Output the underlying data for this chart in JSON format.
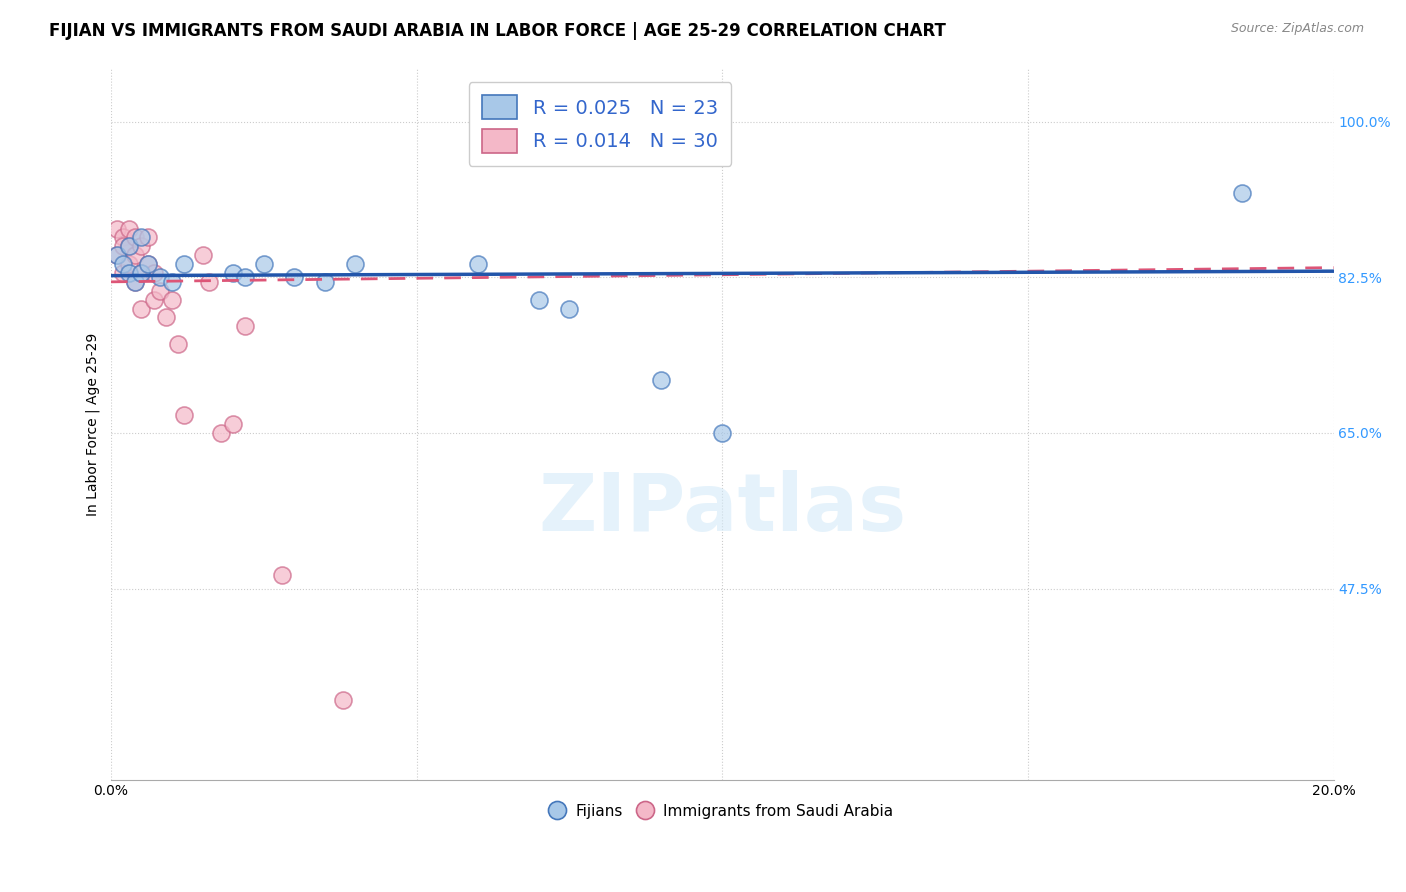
{
  "title": "FIJIAN VS IMMIGRANTS FROM SAUDI ARABIA IN LABOR FORCE | AGE 25-29 CORRELATION CHART",
  "source": "Source: ZipAtlas.com",
  "ylabel": "In Labor Force | Age 25-29",
  "xlim": [
    0.0,
    0.2
  ],
  "ylim": [
    0.26,
    1.06
  ],
  "yticks": [
    0.475,
    0.65,
    0.825,
    1.0
  ],
  "ytick_labels": [
    "47.5%",
    "65.0%",
    "82.5%",
    "100.0%"
  ],
  "xticks": [
    0.0,
    0.05,
    0.1,
    0.15,
    0.2
  ],
  "xtick_labels": [
    "0.0%",
    "",
    "",
    "",
    "20.0%"
  ],
  "legend_label1": "Fijians",
  "legend_label2": "Immigrants from Saudi Arabia",
  "blue_color": "#a8c8e8",
  "pink_color": "#f4b8c8",
  "blue_edge_color": "#4477bb",
  "pink_edge_color": "#cc6688",
  "blue_line_color": "#2255aa",
  "pink_line_color": "#dd5577",
  "blue_scatter_x": [
    0.001,
    0.002,
    0.003,
    0.003,
    0.004,
    0.005,
    0.005,
    0.006,
    0.008,
    0.01,
    0.012,
    0.02,
    0.022,
    0.025,
    0.03,
    0.035,
    0.04,
    0.06,
    0.07,
    0.075,
    0.09,
    0.1,
    0.185
  ],
  "blue_scatter_y": [
    0.85,
    0.84,
    0.83,
    0.86,
    0.82,
    0.83,
    0.87,
    0.84,
    0.825,
    0.82,
    0.84,
    0.83,
    0.825,
    0.84,
    0.825,
    0.82,
    0.84,
    0.84,
    0.8,
    0.79,
    0.71,
    0.65,
    0.92
  ],
  "pink_scatter_x": [
    0.001,
    0.001,
    0.002,
    0.002,
    0.002,
    0.003,
    0.003,
    0.003,
    0.004,
    0.004,
    0.004,
    0.005,
    0.005,
    0.005,
    0.006,
    0.006,
    0.007,
    0.007,
    0.008,
    0.009,
    0.01,
    0.011,
    0.012,
    0.015,
    0.016,
    0.018,
    0.02,
    0.022,
    0.028,
    0.038
  ],
  "pink_scatter_y": [
    0.88,
    0.85,
    0.87,
    0.86,
    0.83,
    0.88,
    0.86,
    0.84,
    0.87,
    0.85,
    0.82,
    0.86,
    0.83,
    0.79,
    0.87,
    0.84,
    0.83,
    0.8,
    0.81,
    0.78,
    0.8,
    0.75,
    0.67,
    0.85,
    0.82,
    0.65,
    0.66,
    0.77,
    0.49,
    0.35
  ],
  "blue_trend_x": [
    0.0,
    0.2
  ],
  "blue_trend_y": [
    0.827,
    0.832
  ],
  "pink_trend_x": [
    0.0,
    0.2
  ],
  "pink_trend_y": [
    0.82,
    0.836
  ],
  "watermark": "ZIPatlas",
  "title_fontsize": 12,
  "axis_label_fontsize": 10,
  "tick_fontsize": 10
}
